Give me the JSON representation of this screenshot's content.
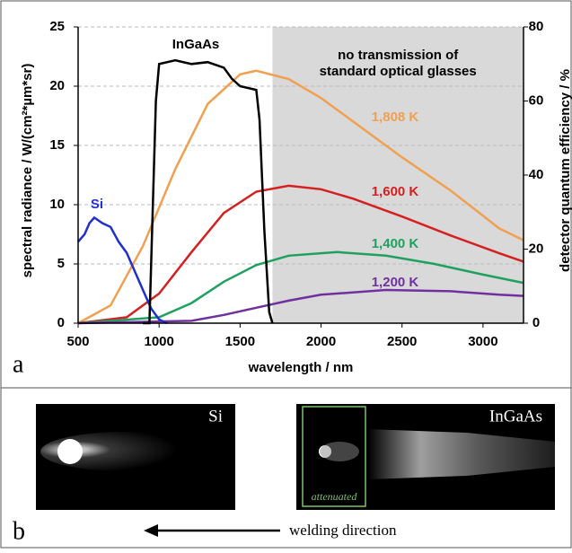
{
  "chart_data": {
    "type": "line",
    "xlabel": "wavelength / nm",
    "ylabel": "spectral radiance / W/(cm²*µm*sr)",
    "y2label": "detector quantum efficiency / %",
    "xlim": [
      500,
      3250
    ],
    "xticks": [
      500,
      1000,
      1500,
      2000,
      2500,
      3000
    ],
    "ylim": [
      0,
      25
    ],
    "yticks": [
      0,
      5,
      10,
      15,
      20,
      25
    ],
    "y2lim": [
      0,
      80
    ],
    "y2ticks": [
      0,
      20,
      40,
      60,
      80
    ],
    "grid": true,
    "shaded_from": 1700,
    "shaded_color": "#d9d9d9",
    "shaded_label": [
      "no transmission of",
      "standard optical glasses"
    ],
    "series": [
      {
        "name": "1,808 K",
        "color": "#f0a050",
        "x": [
          500,
          700,
          900,
          1100,
          1300,
          1500,
          1600,
          1800,
          2000,
          2200,
          2500,
          2800,
          3100,
          3250
        ],
        "values": [
          0,
          1.5,
          6.5,
          13,
          18.5,
          21,
          21.3,
          20.6,
          19,
          17,
          14,
          11.2,
          8,
          7
        ]
      },
      {
        "name": "1,600 K",
        "color": "#d42020",
        "x": [
          500,
          800,
          1000,
          1200,
          1400,
          1600,
          1800,
          2000,
          2200,
          2500,
          2800,
          3100,
          3250
        ],
        "values": [
          0,
          0.5,
          2.5,
          6,
          9.3,
          11.1,
          11.6,
          11.3,
          10.5,
          9,
          7.4,
          5.9,
          5.2
        ]
      },
      {
        "name": "1,400 K",
        "color": "#20a060",
        "x": [
          500,
          1000,
          1200,
          1400,
          1600,
          1800,
          2100,
          2400,
          2700,
          3000,
          3250
        ],
        "values": [
          0,
          0.5,
          1.7,
          3.5,
          4.9,
          5.7,
          6,
          5.7,
          5.0,
          4.1,
          3.4
        ]
      },
      {
        "name": "1,200 K",
        "color": "#7030a0",
        "x": [
          500,
          1200,
          1400,
          1600,
          1800,
          2000,
          2400,
          2800,
          3100,
          3250
        ],
        "values": [
          0,
          0.2,
          0.7,
          1.3,
          1.9,
          2.4,
          2.8,
          2.7,
          2.4,
          2.3
        ]
      },
      {
        "name": "Si",
        "color": "#2030d0",
        "axis": "y2",
        "x": [
          500,
          540,
          570,
          600,
          650,
          700,
          750,
          800,
          850,
          900,
          950,
          1000,
          1050
        ],
        "values": [
          22,
          24,
          27,
          28.5,
          27,
          26,
          22,
          19,
          14,
          9,
          4,
          1,
          0
        ]
      },
      {
        "name": "InGaAs",
        "color": "#000000",
        "axis": "y2",
        "x": [
          900,
          940,
          960,
          980,
          1000,
          1100,
          1200,
          1300,
          1400,
          1450,
          1500,
          1600,
          1620,
          1650,
          1680,
          1700
        ],
        "values": [
          0,
          0,
          30,
          60,
          70,
          71,
          70,
          70.5,
          69,
          66,
          64,
          63,
          55,
          25,
          3,
          0
        ]
      }
    ]
  },
  "panel_labels": [
    "a",
    "b"
  ],
  "images": [
    {
      "label": "Si"
    },
    {
      "label": "InGaAs",
      "box_label": "attenuated"
    }
  ],
  "direction_label": "welding direction"
}
